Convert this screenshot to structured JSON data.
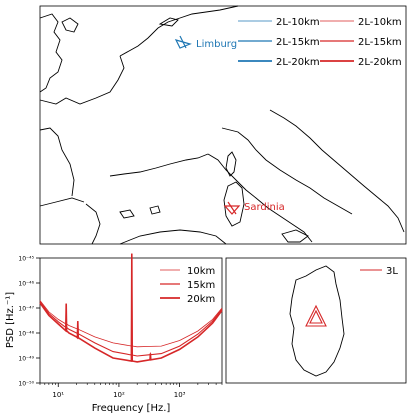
{
  "colors": {
    "blue": "#1f77b4",
    "red": "#d62728",
    "frame": "#000000"
  },
  "map": {
    "limburg_label": "Limburg",
    "sardinia_label": "Sardinia",
    "legend_blue": [
      "2L-10km",
      "2L-15km",
      "2L-20km"
    ],
    "legend_red": [
      "2L-10km",
      "2L-15km",
      "2L-20km"
    ]
  },
  "inset": {
    "legend_label": "3L"
  },
  "chart_data": {
    "type": "line",
    "xlabel": "Frequency [Hz.]",
    "ylabel": "PSD [Hz.⁻¹]",
    "xscale": "log",
    "yscale": "log",
    "xlim": [
      5,
      5000
    ],
    "ylim": [
      1e-50,
      1e-45
    ],
    "xticks": [
      "10¹",
      "10²",
      "10³"
    ],
    "yticks": [
      "10⁻⁵⁰",
      "10⁻⁴⁹",
      "10⁻⁴⁸",
      "10⁻⁴⁷",
      "10⁻⁴⁶",
      "10⁻⁴⁵"
    ],
    "legend_position": "upper right",
    "grid": false,
    "series": [
      {
        "name": "10km",
        "color": "#d62728",
        "x": [
          5,
          7,
          10,
          15,
          20,
          40,
          80,
          200,
          500,
          1000,
          2000,
          3500,
          5000
        ],
        "y": [
          2e-47,
          7e-48,
          3.5e-48,
          2e-48,
          1.5e-48,
          7e-49,
          4e-49,
          2.8e-49,
          3e-49,
          5e-49,
          1.2e-48,
          3.5e-48,
          1e-47
        ]
      },
      {
        "name": "15km",
        "color": "#d62728",
        "x": [
          5,
          7,
          10,
          15,
          20,
          40,
          80,
          200,
          500,
          1000,
          2000,
          3500,
          5000
        ],
        "y": [
          1.8e-47,
          6e-48,
          2.8e-48,
          1.4e-48,
          1e-48,
          4e-49,
          1.8e-49,
          1.2e-49,
          1.5e-49,
          3e-49,
          9e-49,
          3e-48,
          9e-48
        ]
      },
      {
        "name": "20km",
        "color": "#d62728",
        "x": [
          5,
          7,
          10,
          15,
          20,
          40,
          80,
          200,
          500,
          1000,
          2000,
          3500,
          5000
        ],
        "y": [
          1.6e-47,
          5e-48,
          2.3e-48,
          1e-48,
          7e-49,
          2.5e-49,
          1e-49,
          7e-50,
          1e-49,
          2.2e-49,
          7e-49,
          2.5e-48,
          8e-48
        ]
      }
    ],
    "peaks": [
      {
        "x": 13.5,
        "y": 1.5e-47
      },
      {
        "x": 21,
        "y": 3e-48
      },
      {
        "x": 163,
        "y": 1.5e-45
      },
      {
        "x": 330,
        "y": 1.5e-49
      }
    ]
  }
}
